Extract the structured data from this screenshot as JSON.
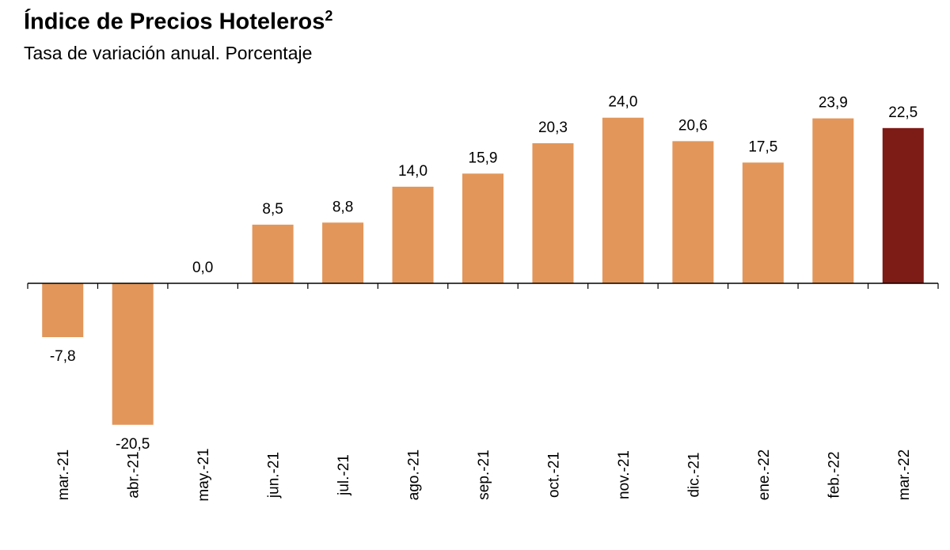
{
  "title": "Índice de Precios Hoteleros",
  "title_sup": "2",
  "subtitle": "Tasa de variación anual. Porcentaje",
  "colors": {
    "bar": "#E2965A",
    "highlight": "#7D1B17",
    "axis": "#000000"
  },
  "chart_data": {
    "type": "bar",
    "categories": [
      "mar.-21",
      "abr.-21",
      "may.-21",
      "jun.-21",
      "jul.-21",
      "ago.-21",
      "sep.-21",
      "oct.-21",
      "nov.-21",
      "dic.-21",
      "ene.-22",
      "feb.-22",
      "mar.-22"
    ],
    "values": [
      -7.8,
      -20.5,
      0.0,
      8.5,
      8.8,
      14.0,
      15.9,
      20.3,
      24.0,
      20.6,
      17.5,
      23.9,
      22.5
    ],
    "data_labels": [
      "-7,8",
      "-20,5",
      "0,0",
      "8,5",
      "8,8",
      "14,0",
      "15,9",
      "20,3",
      "24,0",
      "20,6",
      "17,5",
      "23,9",
      "22,5"
    ],
    "highlight_index": 12,
    "xlabel": "",
    "ylabel": "",
    "ylim": [
      -24,
      27
    ],
    "grid": false,
    "legend": "none"
  }
}
